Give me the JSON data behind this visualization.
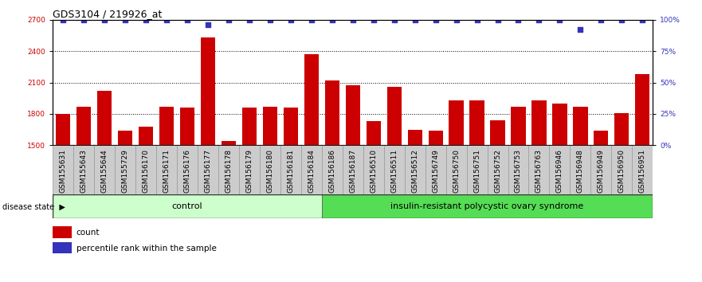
{
  "title": "GDS3104 / 219926_at",
  "samples": [
    "GSM155631",
    "GSM155643",
    "GSM155644",
    "GSM155729",
    "GSM156170",
    "GSM156171",
    "GSM156176",
    "GSM156177",
    "GSM156178",
    "GSM156179",
    "GSM156180",
    "GSM156181",
    "GSM156184",
    "GSM156186",
    "GSM156187",
    "GSM156510",
    "GSM156511",
    "GSM156512",
    "GSM156749",
    "GSM156750",
    "GSM156751",
    "GSM156752",
    "GSM156753",
    "GSM156763",
    "GSM156946",
    "GSM156948",
    "GSM156949",
    "GSM156950",
    "GSM156951"
  ],
  "bar_values": [
    1800,
    1870,
    2020,
    1640,
    1680,
    1870,
    1860,
    2530,
    1540,
    1860,
    1870,
    1860,
    2370,
    2120,
    2070,
    1730,
    2060,
    1650,
    1640,
    1930,
    1930,
    1740,
    1870,
    1930,
    1900,
    1870,
    1640,
    1810,
    2180
  ],
  "percentile_values": [
    100,
    100,
    100,
    100,
    100,
    100,
    100,
    96,
    100,
    100,
    100,
    100,
    100,
    100,
    100,
    100,
    100,
    100,
    100,
    100,
    100,
    100,
    100,
    100,
    100,
    92,
    100,
    100,
    100
  ],
  "bar_color": "#cc0000",
  "percentile_color": "#3333bb",
  "ylim_left": [
    1500,
    2700
  ],
  "ylim_right": [
    0,
    100
  ],
  "yticks_left": [
    1500,
    1800,
    2100,
    2400,
    2700
  ],
  "yticks_right": [
    0,
    25,
    50,
    75,
    100
  ],
  "ytick_labels_right": [
    "0%",
    "25%",
    "50%",
    "75%",
    "100%"
  ],
  "control_count": 13,
  "disease_count": 16,
  "control_label": "control",
  "disease_label": "insulin-resistant polycystic ovary syndrome",
  "disease_state_label": "disease state",
  "control_bg": "#ccffcc",
  "disease_bg": "#55dd55",
  "xtick_bg": "#cccccc",
  "legend_count_label": "count",
  "legend_percentile_label": "percentile rank within the sample",
  "background_color": "#ffffff",
  "title_fontsize": 9,
  "tick_fontsize": 6.5,
  "bar_width": 0.7
}
